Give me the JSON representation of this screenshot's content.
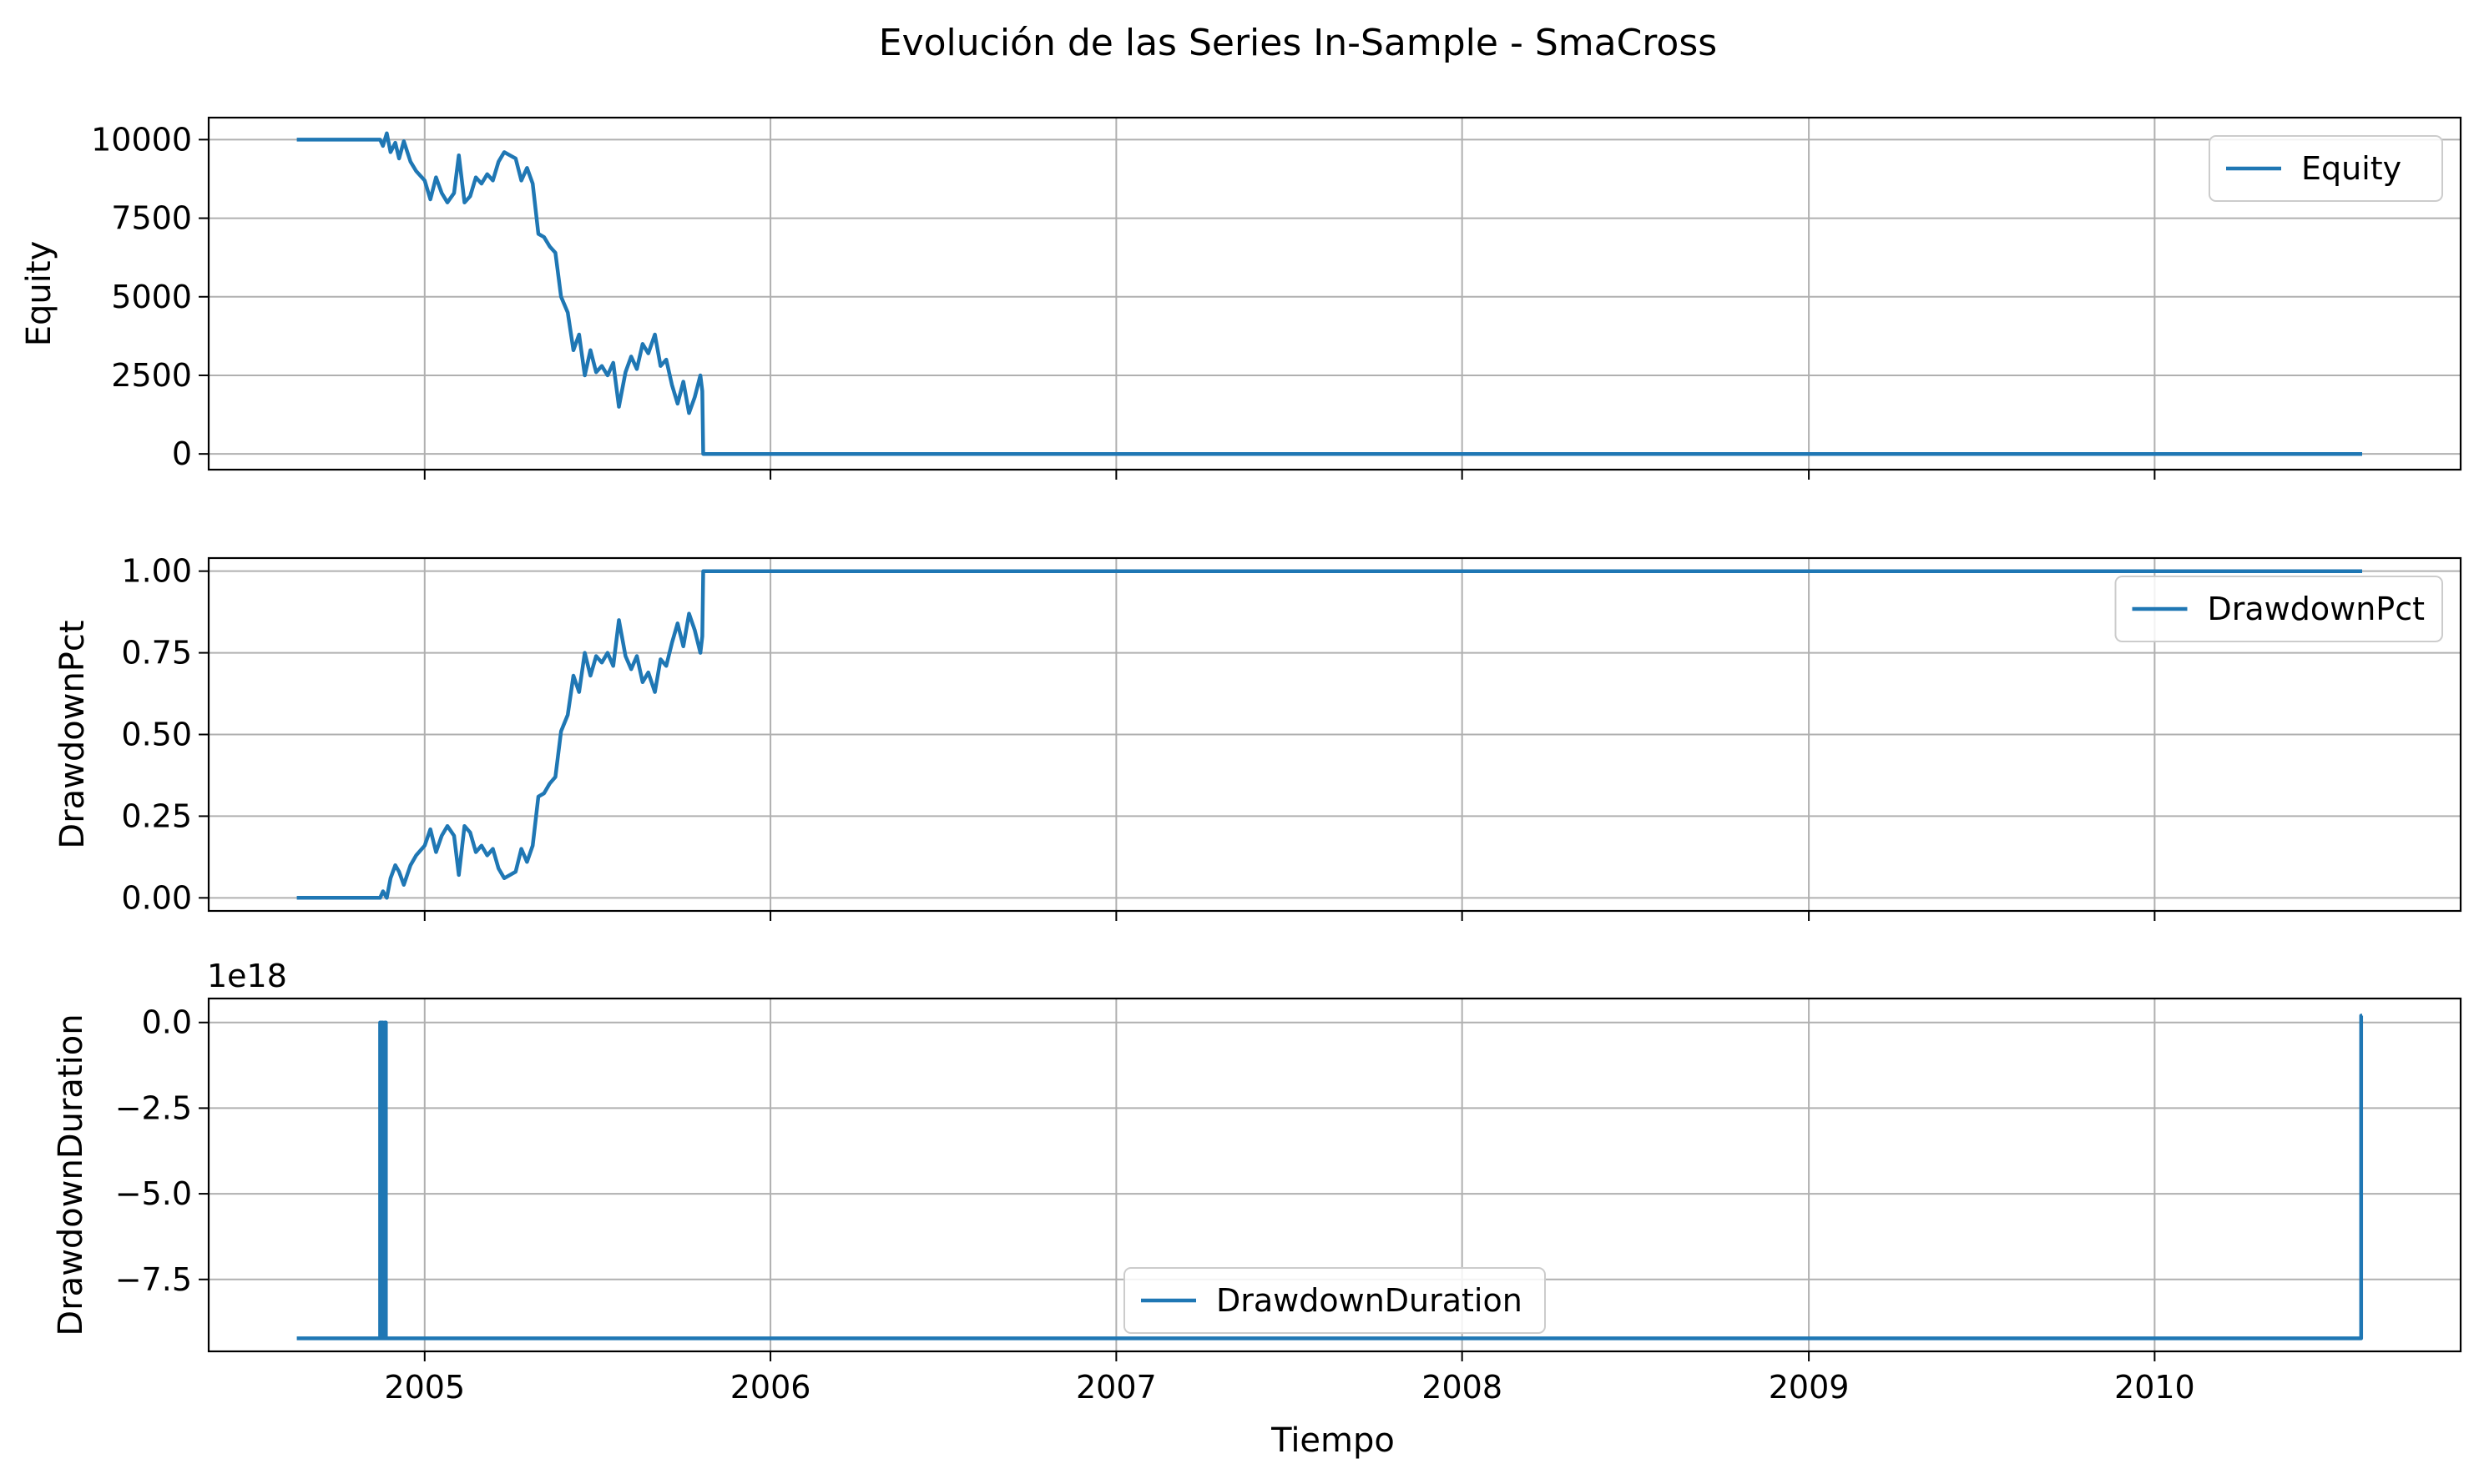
{
  "figure": {
    "title": "Evolución de las Series In-Sample - SmaCross",
    "xlabel": "Tiempo",
    "line_color": "#1f77b4",
    "grid_color": "#b0b0b0"
  },
  "chart_data": [
    {
      "type": "line",
      "ylabel": "Equity",
      "xlim": [
        "2004-05-18",
        "2010-11-20"
      ],
      "ylim": [
        -500,
        10700
      ],
      "yticks": [
        0,
        2500,
        5000,
        7500,
        10000
      ],
      "yticklabels": [
        "0",
        "2500",
        "5000",
        "7500",
        "10000"
      ],
      "xticks": [
        "2005-01-01",
        "2006-01-01",
        "2007-01-01",
        "2008-01-01",
        "2009-01-01",
        "2010-01-01"
      ],
      "xticklabels": [
        "",
        "",
        "",
        "",
        "",
        ""
      ],
      "offset_text": "",
      "grid": true,
      "legend": {
        "position": "upper right"
      },
      "series": [
        {
          "name": "Equity",
          "color": "#1f77b4",
          "x": [
            "2004-08-19",
            "2004-11-15",
            "2004-11-18",
            "2004-11-22",
            "2004-11-26",
            "2004-12-01",
            "2004-12-05",
            "2004-12-10",
            "2004-12-17",
            "2004-12-23",
            "2005-01-01",
            "2005-01-07",
            "2005-01-13",
            "2005-01-19",
            "2005-01-25",
            "2005-02-01",
            "2005-02-06",
            "2005-02-12",
            "2005-02-18",
            "2005-02-24",
            "2005-03-02",
            "2005-03-08",
            "2005-03-14",
            "2005-03-20",
            "2005-03-26",
            "2005-04-01",
            "2005-04-07",
            "2005-04-13",
            "2005-04-19",
            "2005-04-25",
            "2005-05-01",
            "2005-05-07",
            "2005-05-13",
            "2005-05-19",
            "2005-05-25",
            "2005-06-01",
            "2005-06-07",
            "2005-06-13",
            "2005-06-19",
            "2005-06-25",
            "2005-07-01",
            "2005-07-07",
            "2005-07-13",
            "2005-07-19",
            "2005-07-25",
            "2005-08-01",
            "2005-08-07",
            "2005-08-13",
            "2005-08-19",
            "2005-08-25",
            "2005-09-01",
            "2005-09-07",
            "2005-09-13",
            "2005-09-19",
            "2005-09-25",
            "2005-10-01",
            "2005-10-07",
            "2005-10-13",
            "2005-10-19",
            "2005-10-21",
            "2005-10-22",
            "2010-08-08"
          ],
          "values": [
            10000,
            10000,
            9800,
            10200,
            9600,
            9900,
            9400,
            9950,
            9300,
            9000,
            8700,
            8100,
            8800,
            8300,
            8000,
            8300,
            9500,
            8000,
            8200,
            8800,
            8600,
            8900,
            8700,
            9300,
            9600,
            9500,
            9400,
            8700,
            9100,
            8600,
            7000,
            6900,
            6600,
            6400,
            5000,
            4500,
            3300,
            3800,
            2500,
            3300,
            2600,
            2800,
            2500,
            2900,
            1500,
            2600,
            3100,
            2700,
            3500,
            3200,
            3800,
            2800,
            3000,
            2200,
            1600,
            2300,
            1300,
            1800,
            2500,
            2000,
            0,
            0
          ]
        }
      ]
    },
    {
      "type": "line",
      "ylabel": "DrawdownPct",
      "xlim": [
        "2004-05-18",
        "2010-11-20"
      ],
      "ylim": [
        -0.04,
        1.04
      ],
      "yticks": [
        0.0,
        0.25,
        0.5,
        0.75,
        1.0
      ],
      "yticklabels": [
        "0.00",
        "0.25",
        "0.50",
        "0.75",
        "1.00"
      ],
      "xticks": [
        "2005-01-01",
        "2006-01-01",
        "2007-01-01",
        "2008-01-01",
        "2009-01-01",
        "2010-01-01"
      ],
      "xticklabels": [
        "",
        "",
        "",
        "",
        "",
        ""
      ],
      "offset_text": "",
      "grid": true,
      "legend": {
        "position": "upper right"
      },
      "series": [
        {
          "name": "DrawdownPct",
          "color": "#1f77b4",
          "x": [
            "2004-08-19",
            "2004-11-15",
            "2004-11-18",
            "2004-11-22",
            "2004-11-26",
            "2004-12-01",
            "2004-12-05",
            "2004-12-10",
            "2004-12-17",
            "2004-12-23",
            "2005-01-01",
            "2005-01-07",
            "2005-01-13",
            "2005-01-19",
            "2005-01-25",
            "2005-02-01",
            "2005-02-06",
            "2005-02-12",
            "2005-02-18",
            "2005-02-24",
            "2005-03-02",
            "2005-03-08",
            "2005-03-14",
            "2005-03-20",
            "2005-03-26",
            "2005-04-01",
            "2005-04-07",
            "2005-04-13",
            "2005-04-19",
            "2005-04-25",
            "2005-05-01",
            "2005-05-07",
            "2005-05-13",
            "2005-05-19",
            "2005-05-25",
            "2005-06-01",
            "2005-06-07",
            "2005-06-13",
            "2005-06-19",
            "2005-06-25",
            "2005-07-01",
            "2005-07-07",
            "2005-07-13",
            "2005-07-19",
            "2005-07-25",
            "2005-08-01",
            "2005-08-07",
            "2005-08-13",
            "2005-08-19",
            "2005-08-25",
            "2005-09-01",
            "2005-09-07",
            "2005-09-13",
            "2005-09-19",
            "2005-09-25",
            "2005-10-01",
            "2005-10-07",
            "2005-10-13",
            "2005-10-19",
            "2005-10-21",
            "2005-10-22",
            "2010-08-08"
          ],
          "values": [
            0.0,
            0.0,
            0.02,
            0.0,
            0.06,
            0.1,
            0.08,
            0.04,
            0.1,
            0.13,
            0.16,
            0.21,
            0.14,
            0.19,
            0.22,
            0.19,
            0.07,
            0.22,
            0.2,
            0.14,
            0.16,
            0.13,
            0.15,
            0.09,
            0.06,
            0.07,
            0.08,
            0.15,
            0.11,
            0.16,
            0.31,
            0.32,
            0.35,
            0.37,
            0.51,
            0.56,
            0.68,
            0.63,
            0.75,
            0.68,
            0.74,
            0.72,
            0.75,
            0.71,
            0.85,
            0.74,
            0.7,
            0.74,
            0.66,
            0.69,
            0.63,
            0.73,
            0.71,
            0.78,
            0.84,
            0.77,
            0.87,
            0.82,
            0.75,
            0.8,
            1.0,
            1.0
          ]
        }
      ]
    },
    {
      "type": "line",
      "ylabel": "DrawdownDuration",
      "xlim": [
        "2004-05-18",
        "2010-11-20"
      ],
      "ylim": [
        -9.6,
        0.7
      ],
      "yticks": [
        0.0,
        -2.5,
        -5.0,
        -7.5
      ],
      "yticklabels": [
        "0.0",
        "−2.5",
        "−5.0",
        "−7.5"
      ],
      "xticks": [
        "2005-01-01",
        "2006-01-01",
        "2007-01-01",
        "2008-01-01",
        "2009-01-01",
        "2010-01-01"
      ],
      "xticklabels": [
        "2005",
        "2006",
        "2007",
        "2008",
        "2009",
        "2010"
      ],
      "offset_text": "1e18",
      "grid": true,
      "legend": {
        "position": "lower center"
      },
      "series": [
        {
          "name": "DrawdownDuration",
          "color": "#1f77b4",
          "x": [
            "2004-08-19",
            "2004-11-15",
            "2004-11-15",
            "2004-11-16",
            "2004-11-16",
            "2004-11-17",
            "2004-11-17",
            "2004-11-18",
            "2004-11-18",
            "2004-11-20",
            "2004-11-20",
            "2004-11-21",
            "2004-11-21",
            "2004-11-22",
            "2004-11-22",
            "2010-08-07",
            "2010-08-07",
            "2010-08-08"
          ],
          "values": [
            -9.22,
            -9.22,
            0.0,
            0.0,
            -9.22,
            -9.22,
            0.0,
            0.0,
            -9.22,
            -9.22,
            0.0,
            0.0,
            -9.22,
            -9.22,
            -9.22,
            -9.22,
            0.2,
            0.2
          ]
        }
      ]
    }
  ]
}
